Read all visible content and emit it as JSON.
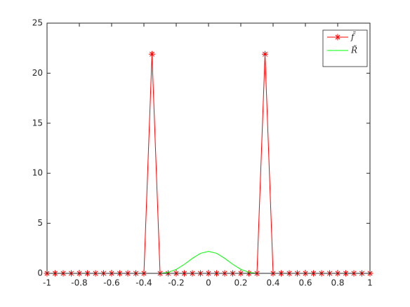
{
  "chart_data": {
    "type": "line",
    "x": [
      -1,
      -0.95,
      -0.9,
      -0.85,
      -0.8,
      -0.75,
      -0.7,
      -0.65,
      -0.6,
      -0.55,
      -0.5,
      -0.45,
      -0.4,
      -0.35,
      -0.3,
      -0.25,
      -0.2,
      -0.15,
      -0.1,
      -0.05,
      0,
      0.05,
      0.1,
      0.15,
      0.2,
      0.25,
      0.3,
      0.35,
      0.4,
      0.45,
      0.5,
      0.55,
      0.6,
      0.65,
      0.7,
      0.75,
      0.8,
      0.85,
      0.9,
      0.95,
      1
    ],
    "series": [
      {
        "name": "f̃",
        "color": "#ff0000",
        "marker": "asterisk",
        "values": [
          0,
          0,
          0,
          0,
          0,
          0,
          0,
          0,
          0,
          0,
          0,
          0,
          0,
          21.9,
          0,
          0,
          0,
          0,
          0,
          0,
          0,
          0,
          0,
          0,
          0,
          0,
          0,
          21.9,
          0,
          0,
          0,
          0,
          0,
          0,
          0,
          0,
          0,
          0,
          0,
          0,
          0
        ]
      },
      {
        "name": "R̃",
        "color": "#00ff00",
        "marker": "none",
        "values": [
          0,
          0,
          0,
          0,
          0,
          0,
          0,
          0,
          0,
          0,
          0,
          0,
          0,
          0,
          0,
          0.1,
          0.4,
          0.9,
          1.5,
          2.0,
          2.2,
          2.0,
          1.5,
          0.9,
          0.4,
          0.1,
          0,
          0,
          0,
          0,
          0,
          0,
          0,
          0,
          0,
          0,
          0,
          0,
          0,
          0,
          0
        ]
      }
    ],
    "xlim": [
      -1,
      1
    ],
    "ylim": [
      0,
      25
    ],
    "xticks": [
      -1,
      -0.8,
      -0.6,
      -0.4,
      -0.2,
      0,
      0.2,
      0.4,
      0.6,
      0.8,
      1
    ],
    "yticks": [
      0,
      5,
      10,
      15,
      20,
      25
    ],
    "legend": "northeast",
    "grid": false
  }
}
